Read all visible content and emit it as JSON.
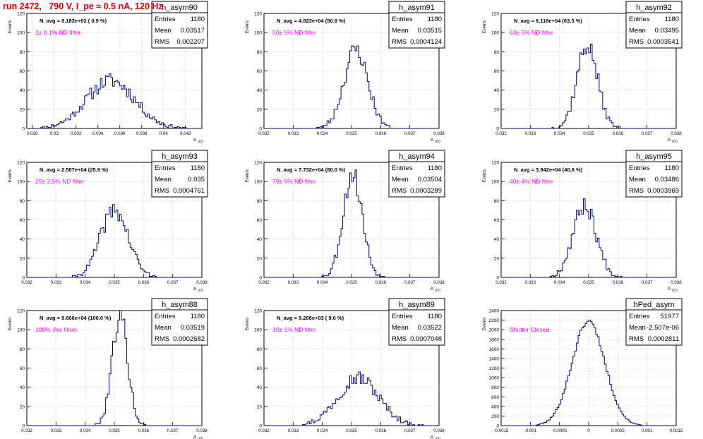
{
  "run_title": "run 2472,   790 V, I_pe ≈ 0.5 nA, 120 Hz",
  "colors": {
    "histogram": "#000080",
    "annotation": "#ff00ff",
    "title": "#e00000",
    "grid": "#b0b0b0"
  },
  "chart_data": [
    {
      "type": "histogram",
      "name": "h_asym90",
      "ylabel": "Events",
      "xlabel": "A_LED",
      "xlim": [
        0.0275,
        0.0435
      ],
      "ylim": [
        0,
        120
      ],
      "grid": true,
      "x_ticks": [
        "0.028",
        "0.03",
        "0.032",
        "0.034",
        "0.036",
        "0.038",
        "0.04",
        "0.042"
      ],
      "x_tick_values": [
        0.028,
        0.03,
        0.032,
        0.034,
        0.036,
        0.038,
        0.04,
        0.042
      ],
      "y_ticks": [
        "0",
        "20",
        "40",
        "60",
        "80",
        "100",
        "120"
      ],
      "navg": "N_avg = 9.183e+02 ( 0.9 %)",
      "filter": "1± 0.1% ND filter",
      "stats": [
        [
          "Entries",
          "1180"
        ],
        [
          "Mean",
          "0.03517"
        ],
        [
          "RMS",
          "0.002207"
        ]
      ],
      "center": 0.03517,
      "sigma": 0.002207,
      "peak": 50,
      "seed": 11,
      "hist_range": [
        0.0282,
        0.042
      ]
    },
    {
      "type": "histogram",
      "name": "h_asym91",
      "ylabel": "Events",
      "xlabel": "A_LED",
      "xlim": [
        0.032,
        0.038
      ],
      "ylim": [
        0,
        120
      ],
      "grid": true,
      "x_ticks": [
        "0.032",
        "0.033",
        "0.034",
        "0.035",
        "0.036",
        "0.037",
        "0.038"
      ],
      "x_tick_values": [
        0.032,
        0.033,
        0.034,
        0.035,
        0.036,
        0.037,
        0.038
      ],
      "y_ticks": [
        "0",
        "20",
        "40",
        "60",
        "80",
        "100",
        "120"
      ],
      "navg": "N_avg = 4.923e+04 (50.9 %)",
      "filter": "50± 5% ND filter",
      "stats": [
        [
          "Entries",
          "1180"
        ],
        [
          "Mean",
          "0.03515"
        ],
        [
          "RMS",
          "0.0004124"
        ]
      ],
      "center": 0.03515,
      "sigma": 0.0004124,
      "peak": 82,
      "seed": 23,
      "hist_range": [
        0.0336,
        0.0368
      ]
    },
    {
      "type": "histogram",
      "name": "h_asym92",
      "ylabel": "Events",
      "xlabel": "A_LED",
      "xlim": [
        0.032,
        0.038
      ],
      "ylim": [
        0,
        120
      ],
      "grid": true,
      "x_ticks": [
        "0.032",
        "0.033",
        "0.034",
        "0.035",
        "0.036",
        "0.037",
        "0.038"
      ],
      "x_tick_values": [
        0.032,
        0.033,
        0.034,
        0.035,
        0.036,
        0.037,
        0.038
      ],
      "y_ticks": [
        "0",
        "20",
        "40",
        "60",
        "80",
        "100",
        "120"
      ],
      "navg": "N_avg = 6.118e+04 (63.3 %)",
      "filter": "63± 5% ND filter",
      "stats": [
        [
          "Entries",
          "1180"
        ],
        [
          "Mean",
          "0.03495"
        ],
        [
          "RMS",
          "0.0003541"
        ]
      ],
      "center": 0.03495,
      "sigma": 0.0003541,
      "peak": 87,
      "seed": 37,
      "hist_range": [
        0.0337,
        0.0362
      ]
    },
    {
      "type": "histogram",
      "name": "h_asym93",
      "ylabel": "Events",
      "xlabel": "A_LED",
      "xlim": [
        0.032,
        0.038
      ],
      "ylim": [
        0,
        120
      ],
      "grid": true,
      "x_ticks": [
        "0.032",
        "0.033",
        "0.034",
        "0.035",
        "0.036",
        "0.037",
        "0.038"
      ],
      "x_tick_values": [
        0.032,
        0.033,
        0.034,
        0.035,
        0.036,
        0.037,
        0.038
      ],
      "y_ticks": [
        "0",
        "20",
        "40",
        "60",
        "80",
        "100",
        "120"
      ],
      "navg": "N_avg = 2.507e+04 (25.9 %)",
      "filter": "25± 2.5% ND filter",
      "stats": [
        [
          "Entries",
          "1180"
        ],
        [
          "Mean",
          "0.035"
        ],
        [
          "RMS",
          "0.0004761"
        ]
      ],
      "center": 0.035,
      "sigma": 0.0004761,
      "peak": 70,
      "seed": 41,
      "hist_range": [
        0.0335,
        0.0366
      ]
    },
    {
      "type": "histogram",
      "name": "h_asym94",
      "ylabel": "Events",
      "xlabel": "A_LED",
      "xlim": [
        0.032,
        0.038
      ],
      "ylim": [
        0,
        120
      ],
      "grid": true,
      "x_ticks": [
        "0.032",
        "0.033",
        "0.034",
        "0.035",
        "0.036",
        "0.037",
        "0.038"
      ],
      "x_tick_values": [
        0.032,
        0.033,
        0.034,
        0.035,
        0.036,
        0.037,
        0.038
      ],
      "y_ticks": [
        "0",
        "20",
        "40",
        "60",
        "80",
        "100",
        "120"
      ],
      "navg": "N_avg = 7.732e+04 (80.0 %)",
      "filter": "79± 5% ND filter",
      "stats": [
        [
          "Entries",
          "1180"
        ],
        [
          "Mean",
          "0.03504"
        ],
        [
          "RMS",
          "0.0003289"
        ]
      ],
      "center": 0.03504,
      "sigma": 0.0003289,
      "peak": 108,
      "seed": 53,
      "hist_range": [
        0.0338,
        0.0362
      ]
    },
    {
      "type": "histogram",
      "name": "h_asym95",
      "ylabel": "Events",
      "xlabel": "A_LED",
      "xlim": [
        0.032,
        0.038
      ],
      "ylim": [
        0,
        120
      ],
      "grid": true,
      "x_ticks": [
        "0.032",
        "0.033",
        "0.034",
        "0.035",
        "0.036",
        "0.037",
        "0.038"
      ],
      "x_tick_values": [
        0.032,
        0.033,
        0.034,
        0.035,
        0.036,
        0.037,
        0.038
      ],
      "y_ticks": [
        "0",
        "20",
        "40",
        "60",
        "80",
        "100",
        "120"
      ],
      "navg": "N_avg = 3.942e+04 (40.8 %)",
      "filter": "40± 4% ND filter",
      "stats": [
        [
          "Entries",
          "1180"
        ],
        [
          "Mean",
          "0.03486"
        ],
        [
          "RMS",
          "0.0003969"
        ]
      ],
      "center": 0.03486,
      "sigma": 0.0003969,
      "peak": 76,
      "seed": 67,
      "hist_range": [
        0.0336,
        0.0362
      ]
    },
    {
      "type": "histogram",
      "name": "h_asym88",
      "ylabel": "Events",
      "xlabel": "A_LED",
      "xlim": [
        0.032,
        0.038
      ],
      "ylim": [
        0,
        120
      ],
      "grid": true,
      "x_ticks": [
        "0.032",
        "0.033",
        "0.034",
        "0.035",
        "0.036",
        "0.037",
        "0.038"
      ],
      "x_tick_values": [
        0.032,
        0.033,
        0.034,
        0.035,
        0.036,
        0.037,
        0.038
      ],
      "y_ticks": [
        "0",
        "20",
        "40",
        "60",
        "80",
        "100",
        "120"
      ],
      "navg": "N_avg = 9.666e+04 (100.0 %)",
      "filter": "100% (No filter)",
      "stats": [
        [
          "Entries",
          "1180"
        ],
        [
          "Mean",
          "0.03519"
        ],
        [
          "RMS",
          "0.0002682"
        ]
      ],
      "center": 0.03519,
      "sigma": 0.0002682,
      "peak": 115,
      "seed": 79,
      "hist_range": [
        0.0342,
        0.0362
      ]
    },
    {
      "type": "histogram",
      "name": "h_asym89",
      "ylabel": "Events",
      "xlabel": "A_LED",
      "xlim": [
        0.032,
        0.038
      ],
      "ylim": [
        0,
        120
      ],
      "grid": true,
      "x_ticks": [
        "0.032",
        "0.033",
        "0.034",
        "0.035",
        "0.036",
        "0.037",
        "0.038"
      ],
      "x_tick_values": [
        0.032,
        0.033,
        0.034,
        0.035,
        0.036,
        0.037,
        0.038
      ],
      "y_ticks": [
        "0",
        "20",
        "40",
        "60",
        "80",
        "100",
        "120"
      ],
      "navg": "N_avg = 9.268e+03 ( 9.6 %)",
      "filter": "10± 1% ND filter",
      "stats": [
        [
          "Entries",
          "1180"
        ],
        [
          "Mean",
          "0.03522"
        ],
        [
          "RMS",
          "0.0007048"
        ]
      ],
      "center": 0.03522,
      "sigma": 0.0007048,
      "peak": 50,
      "seed": 97,
      "hist_range": [
        0.033,
        0.0375
      ]
    },
    {
      "type": "histogram",
      "name": "hPed_asym",
      "ylabel": "Events",
      "xlabel": "",
      "xlim": [
        -0.0015,
        0.0015
      ],
      "ylim": [
        0,
        2400
      ],
      "grid": true,
      "x_ticks": [
        "-0.0015",
        "-0.001",
        "-0.0005",
        "0",
        "0.0005",
        "0.001",
        "0.0015"
      ],
      "x_tick_values": [
        -0.0015,
        -0.001,
        -0.0005,
        0,
        0.0005,
        0.001,
        0.0015
      ],
      "y_ticks": [
        "0",
        "200",
        "400",
        "600",
        "800",
        "1000",
        "1200",
        "1400",
        "1600",
        "1800",
        "2000",
        "2200",
        "2400"
      ],
      "navg": "",
      "filter": "Shutter Closed",
      "stats": [
        [
          "Entries",
          "51977"
        ],
        [
          "Mean",
          "-2.507e-06"
        ],
        [
          "RMS",
          "0.0002811"
        ]
      ],
      "center": -2.5e-06,
      "sigma": 0.0002811,
      "peak": 2180,
      "seed": 101,
      "hist_range": [
        -0.0009,
        0.0009
      ]
    }
  ]
}
